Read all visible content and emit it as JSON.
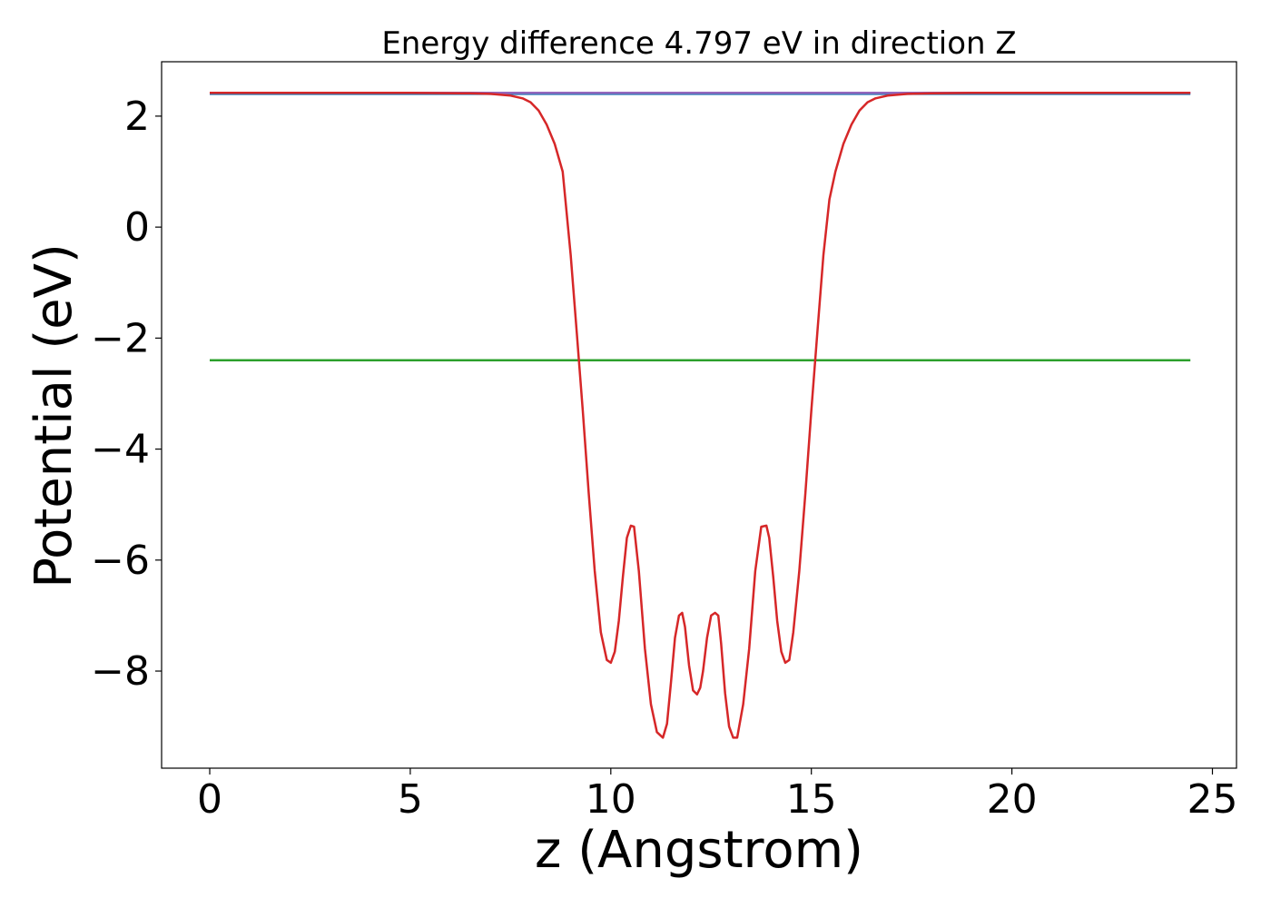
{
  "chart_data": {
    "type": "line",
    "title": "Energy difference 4.797 eV in direction Z",
    "xlabel": "z (Angstrom)",
    "ylabel": "Potential (eV)",
    "xlim": [
      -1.2,
      25.6
    ],
    "ylim": [
      -9.75,
      2.98
    ],
    "xticks": [
      0,
      5,
      10,
      15,
      20,
      25
    ],
    "xtick_labels": [
      "0",
      "5",
      "10",
      "15",
      "20",
      "25"
    ],
    "yticks": [
      2,
      0,
      -2,
      -4,
      -6,
      -8
    ],
    "ytick_labels": [
      "2",
      "0",
      "−2",
      "−4",
      "−6",
      "−8"
    ],
    "grid": false,
    "legend": "none",
    "series": [
      {
        "color": "#1f77b4",
        "x": [
          0,
          24.45
        ],
        "y": [
          2.4,
          2.4
        ]
      },
      {
        "color": "#2ca02c",
        "x": [
          0,
          24.45
        ],
        "y": [
          -2.4,
          -2.4
        ]
      },
      {
        "color": "#9467bd",
        "x": [
          0,
          6.5,
          24.45
        ],
        "y": [
          2.42,
          2.42,
          2.42
        ]
      },
      {
        "color": "#d62728",
        "x": [
          0,
          5,
          6.5,
          7.0,
          7.5,
          7.8,
          8.0,
          8.2,
          8.4,
          8.6,
          8.8,
          9.0,
          9.15,
          9.3,
          9.45,
          9.6,
          9.75,
          9.9,
          10.0,
          10.1,
          10.2,
          10.3,
          10.4,
          10.5,
          10.58,
          10.7,
          10.85,
          11.0,
          11.15,
          11.3,
          11.4,
          11.5,
          11.6,
          11.7,
          11.78,
          11.85,
          11.95,
          12.05,
          12.15,
          12.23,
          12.3,
          12.4,
          12.5,
          12.6,
          12.68,
          12.75,
          12.85,
          12.95,
          13.05,
          13.15,
          13.3,
          13.45,
          13.6,
          13.75,
          13.88,
          13.95,
          14.05,
          14.15,
          14.25,
          14.35,
          14.45,
          14.55,
          14.7,
          14.85,
          15.0,
          15.15,
          15.3,
          15.45,
          15.6,
          15.8,
          16.0,
          16.2,
          16.4,
          16.6,
          16.9,
          17.4,
          18.0,
          19.0,
          24.45
        ],
        "y": [
          2.42,
          2.42,
          2.41,
          2.4,
          2.37,
          2.32,
          2.25,
          2.1,
          1.85,
          1.5,
          1.0,
          -0.5,
          -1.9,
          -3.3,
          -4.8,
          -6.2,
          -7.3,
          -7.8,
          -7.85,
          -7.65,
          -7.1,
          -6.3,
          -5.6,
          -5.38,
          -5.4,
          -6.2,
          -7.6,
          -8.6,
          -9.1,
          -9.2,
          -8.95,
          -8.2,
          -7.4,
          -7.0,
          -6.95,
          -7.2,
          -7.9,
          -8.35,
          -8.42,
          -8.3,
          -8.0,
          -7.4,
          -7.0,
          -6.95,
          -7.0,
          -7.5,
          -8.4,
          -9.0,
          -9.2,
          -9.2,
          -8.6,
          -7.6,
          -6.2,
          -5.4,
          -5.38,
          -5.6,
          -6.3,
          -7.1,
          -7.65,
          -7.85,
          -7.8,
          -7.3,
          -6.2,
          -4.8,
          -3.3,
          -1.9,
          -0.5,
          0.5,
          1.0,
          1.5,
          1.85,
          2.1,
          2.25,
          2.32,
          2.37,
          2.4,
          2.41,
          2.42,
          2.42
        ]
      }
    ]
  }
}
